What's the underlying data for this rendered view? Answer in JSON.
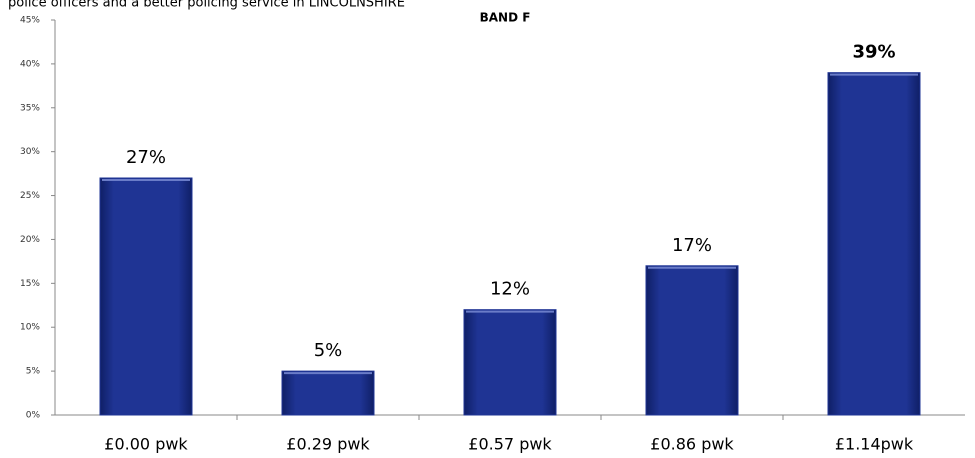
{
  "chart_data": {
    "type": "bar",
    "subtitle": "police officers and a better policing service in LINCOLNSHIRE",
    "title": "BAND F",
    "categories": [
      "£0.00 pwk",
      "£0.29 pwk",
      "£0.57 pwk",
      "£0.86 pwk",
      "£1.14pwk"
    ],
    "values": [
      27,
      5,
      12,
      17,
      39
    ],
    "value_labels": [
      "27%",
      "5%",
      "12%",
      "17%",
      "39%"
    ],
    "color": "#1f3494",
    "ylim": [
      0,
      45
    ],
    "yticks": [
      {
        "value": 0,
        "label": "0%"
      },
      {
        "value": 5,
        "label": "5%"
      },
      {
        "value": 10,
        "label": "10%"
      },
      {
        "value": 15,
        "label": "15%"
      },
      {
        "value": 20,
        "label": "20%"
      },
      {
        "value": 25,
        "label": "25%"
      },
      {
        "value": 30,
        "label": "30%"
      },
      {
        "value": 35,
        "label": "35%"
      },
      {
        "value": 40,
        "label": "40%"
      },
      {
        "value": 45,
        "label": "45%"
      }
    ]
  }
}
